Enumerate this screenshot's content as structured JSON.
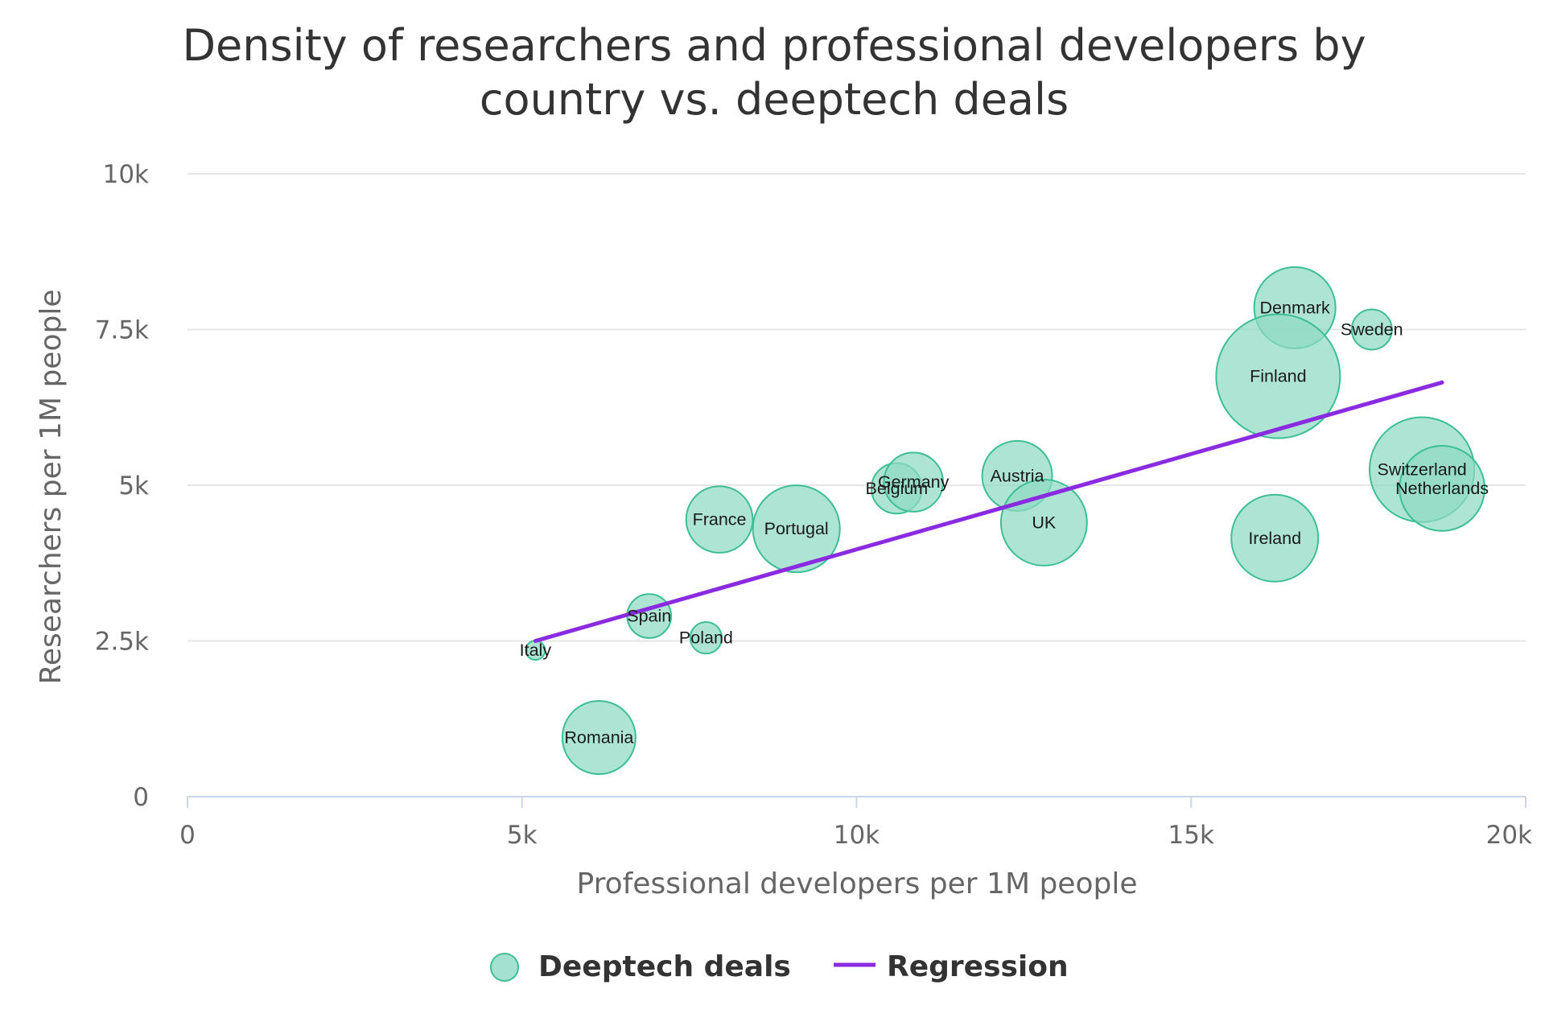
{
  "chart_data": {
    "type": "scatter",
    "title": "Density of researchers and professional developers by country vs. deeptech deals",
    "title_lines": [
      "Density of researchers and professional developers by",
      "country vs. deeptech deals"
    ],
    "xlabel": "Professional developers per 1M people",
    "ylabel": "Researchers per 1M people",
    "xlim": [
      0,
      20000
    ],
    "ylim": [
      0,
      10000
    ],
    "x_ticks": [
      0,
      5000,
      10000,
      15000,
      20000
    ],
    "x_tick_labels": [
      "0",
      "5k",
      "10k",
      "15k",
      "20k"
    ],
    "y_ticks": [
      0,
      2500,
      5000,
      7500,
      10000
    ],
    "y_tick_labels": [
      "0",
      "2.5k",
      "5k",
      "7.5k",
      "10k"
    ],
    "grid": "horizontal",
    "legend_position": "bottom-center",
    "colors": {
      "bubble_fill": "#8fd9c4",
      "bubble_stroke": "#3dbf94",
      "regression": "#8a2be2"
    },
    "series": [
      {
        "name": "Deeptech deals",
        "kind": "bubble",
        "points": [
          {
            "label": "Italy",
            "x": 5200,
            "y": 2350,
            "size": 0.4
          },
          {
            "label": "Spain",
            "x": 6900,
            "y": 2900,
            "size": 1.4
          },
          {
            "label": "Poland",
            "x": 7750,
            "y": 2550,
            "size": 0.8
          },
          {
            "label": "Romania",
            "x": 6150,
            "y": 950,
            "size": 3.6
          },
          {
            "label": "France",
            "x": 7950,
            "y": 4450,
            "size": 3.0
          },
          {
            "label": "Portugal",
            "x": 9100,
            "y": 4300,
            "size": 5.0
          },
          {
            "label": "Belgium",
            "x": 10600,
            "y": 4950,
            "size": 1.8
          },
          {
            "label": "Germany",
            "x": 10850,
            "y": 5050,
            "size": 2.4
          },
          {
            "label": "Austria",
            "x": 12400,
            "y": 5150,
            "size": 3.3
          },
          {
            "label": "UK",
            "x": 12800,
            "y": 4400,
            "size": 4.9
          },
          {
            "label": "Ireland",
            "x": 16250,
            "y": 4150,
            "size": 5.0
          },
          {
            "label": "Denmark",
            "x": 16550,
            "y": 7850,
            "size": 4.4
          },
          {
            "label": "Sweden",
            "x": 17700,
            "y": 7500,
            "size": 1.2
          },
          {
            "label": "Finland",
            "x": 16300,
            "y": 6750,
            "size": 10.0
          },
          {
            "label": "Switzerland",
            "x": 18450,
            "y": 5250,
            "size": 7.2
          },
          {
            "label": "Netherlands",
            "x": 18750,
            "y": 4950,
            "size": 4.8
          }
        ]
      },
      {
        "name": "Regression",
        "kind": "line",
        "points": [
          {
            "x": 5200,
            "y": 2500
          },
          {
            "x": 18750,
            "y": 6650
          }
        ]
      }
    ],
    "legend": [
      {
        "label": "Deeptech deals",
        "symbol": "circle"
      },
      {
        "label": "Regression",
        "symbol": "line"
      }
    ]
  }
}
